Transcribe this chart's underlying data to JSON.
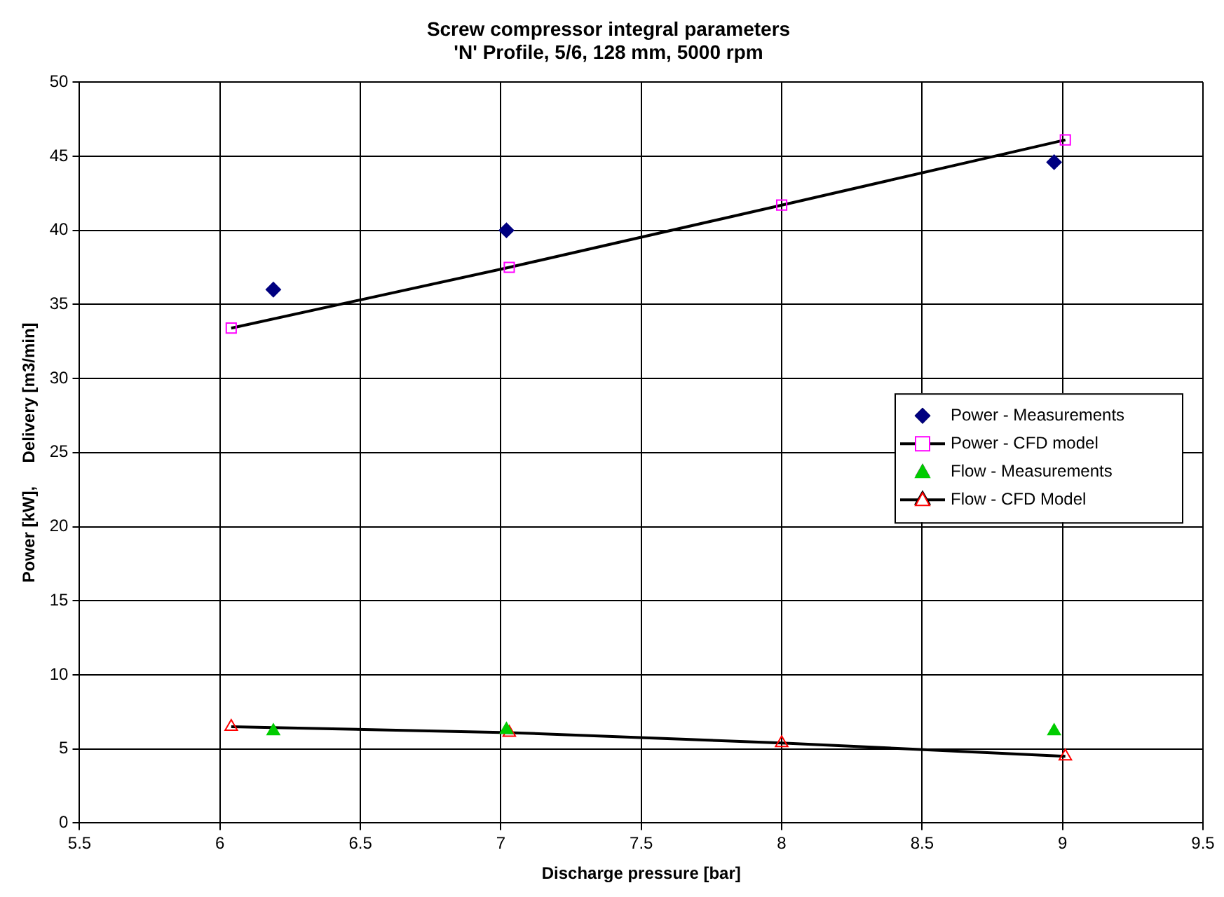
{
  "chart_data": {
    "type": "scatter",
    "title": "Screw compressor integral parameters",
    "subtitle": "'N' Profile, 5/6, 128 mm, 5000 rpm",
    "xlabel": "Discharge pressure [bar]",
    "ylabel": "Power [kW],     Delivery [m3/min]",
    "xlim": [
      5.5,
      9.5
    ],
    "xticks": [
      5.5,
      6,
      6.5,
      7,
      7.5,
      8,
      8.5,
      9,
      9.5
    ],
    "ylim": [
      0,
      50
    ],
    "yticks": [
      0,
      5,
      10,
      15,
      20,
      25,
      30,
      35,
      40,
      45,
      50
    ],
    "grid": true,
    "legend": "right",
    "series": [
      {
        "name": "Power - Measurements",
        "type": "scatter",
        "marker": "diamond",
        "color": "#000080",
        "x": [
          6.19,
          7.02,
          8.97
        ],
        "values": [
          36,
          40,
          44.6
        ]
      },
      {
        "name": "Power - CFD model",
        "type": "line",
        "marker": "square",
        "color": "#ff00ff",
        "x": [
          6.04,
          7.03,
          8.0,
          9.01
        ],
        "values": [
          33.4,
          37.5,
          41.7,
          46.1
        ]
      },
      {
        "name": "Flow - Measurements",
        "type": "scatter",
        "marker": "triangle",
        "color": "#00cc00",
        "x": [
          6.19,
          7.02,
          8.97
        ],
        "values": [
          6.2,
          6.3,
          6.2
        ]
      },
      {
        "name": "Flow - CFD Model",
        "type": "line",
        "marker": "triangle",
        "color": "#ff0000",
        "x": [
          6.04,
          7.03,
          8.0,
          9.01
        ],
        "values": [
          6.5,
          6.1,
          5.4,
          4.5
        ]
      }
    ]
  }
}
